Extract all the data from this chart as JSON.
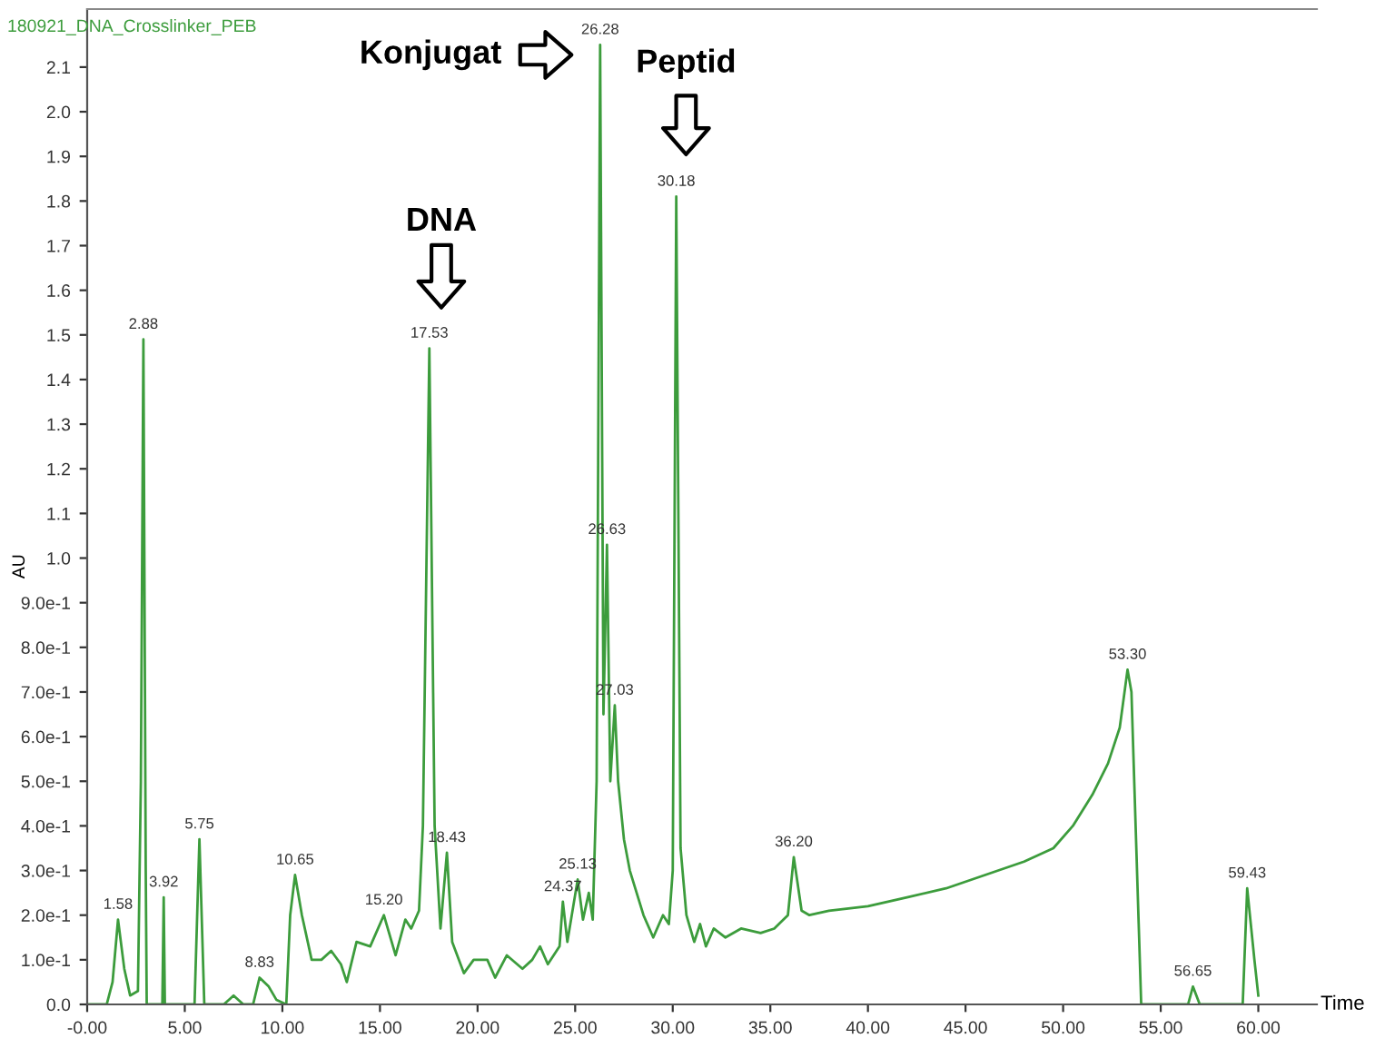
{
  "chart_data": {
    "type": "line",
    "title": "180921_DNA_Crosslinker_PEB",
    "xlabel": "Time",
    "ylabel": "AU",
    "series": [
      {
        "color": "#3c9c3c",
        "x": [
          0,
          1.0,
          1.3,
          1.58,
          1.9,
          2.2,
          2.6,
          2.75,
          2.88,
          3.0,
          3.05,
          3.85,
          3.92,
          3.98,
          5.5,
          5.75,
          6.0,
          7.0,
          7.5,
          8.0,
          8.5,
          8.83,
          9.3,
          9.7,
          10.2,
          10.4,
          10.65,
          11.0,
          11.5,
          12.0,
          12.5,
          13.0,
          13.3,
          13.8,
          14.5,
          15.2,
          15.6,
          15.8,
          16.3,
          16.6,
          17.0,
          17.2,
          17.53,
          17.8,
          18.1,
          18.43,
          18.7,
          19.3,
          19.8,
          20.5,
          20.9,
          21.5,
          22.3,
          22.8,
          23.2,
          23.6,
          24.2,
          24.37,
          24.6,
          25.13,
          25.4,
          25.7,
          25.9,
          26.1,
          26.28,
          26.45,
          26.63,
          26.8,
          27.03,
          27.2,
          27.5,
          27.8,
          28.5,
          29.0,
          29.5,
          29.8,
          30.0,
          30.18,
          30.4,
          30.7,
          31.1,
          31.4,
          31.7,
          32.1,
          32.7,
          33.5,
          34.5,
          35.2,
          35.9,
          36.2,
          36.6,
          37.0,
          38.0,
          40.0,
          42.0,
          44.0,
          46.0,
          48.0,
          49.5,
          50.5,
          51.5,
          52.3,
          52.9,
          53.3,
          53.5,
          54.0,
          56.4,
          56.65,
          57.0,
          59.2,
          59.43,
          59.8,
          60.0
        ],
        "values": [
          0,
          0,
          0.05,
          0.19,
          0.08,
          0.02,
          0.03,
          0.5,
          1.49,
          0.3,
          0,
          0,
          0.24,
          0,
          0,
          0.37,
          0,
          0,
          0.02,
          0,
          0,
          0.06,
          0.04,
          0.01,
          0,
          0.2,
          0.29,
          0.2,
          0.1,
          0.1,
          0.12,
          0.09,
          0.05,
          0.14,
          0.13,
          0.2,
          0.14,
          0.11,
          0.19,
          0.17,
          0.21,
          0.4,
          1.47,
          0.4,
          0.17,
          0.34,
          0.14,
          0.07,
          0.1,
          0.1,
          0.06,
          0.11,
          0.08,
          0.1,
          0.13,
          0.09,
          0.13,
          0.23,
          0.14,
          0.28,
          0.19,
          0.25,
          0.19,
          0.5,
          2.15,
          0.65,
          1.03,
          0.5,
          0.67,
          0.5,
          0.37,
          0.3,
          0.2,
          0.15,
          0.2,
          0.18,
          0.3,
          1.81,
          0.35,
          0.2,
          0.14,
          0.18,
          0.13,
          0.17,
          0.15,
          0.17,
          0.16,
          0.17,
          0.2,
          0.33,
          0.21,
          0.2,
          0.21,
          0.22,
          0.24,
          0.26,
          0.29,
          0.32,
          0.35,
          0.4,
          0.47,
          0.54,
          0.62,
          0.75,
          0.7,
          0,
          0,
          0.04,
          0,
          0,
          0.26,
          0.1,
          0.02
        ]
      }
    ],
    "xlim": [
      0,
      63
    ],
    "xticks": [
      {
        "value": 0,
        "label": "-0.00"
      },
      {
        "value": 5,
        "label": "5.00"
      },
      {
        "value": 10,
        "label": "10.00"
      },
      {
        "value": 15,
        "label": "15.00"
      },
      {
        "value": 20,
        "label": "20.00"
      },
      {
        "value": 25,
        "label": "25.00"
      },
      {
        "value": 30,
        "label": "30.00"
      },
      {
        "value": 35,
        "label": "35.00"
      },
      {
        "value": 40,
        "label": "40.00"
      },
      {
        "value": 45,
        "label": "45.00"
      },
      {
        "value": 50,
        "label": "50.00"
      },
      {
        "value": 55,
        "label": "55.00"
      },
      {
        "value": 60,
        "label": "60.00"
      }
    ],
    "ylim": [
      0,
      2.23
    ],
    "yticks": [
      {
        "value": 0,
        "label": "0.0"
      },
      {
        "value": 0.1,
        "label": "1.0e-1"
      },
      {
        "value": 0.2,
        "label": "2.0e-1"
      },
      {
        "value": 0.3,
        "label": "3.0e-1"
      },
      {
        "value": 0.4,
        "label": "4.0e-1"
      },
      {
        "value": 0.5,
        "label": "5.0e-1"
      },
      {
        "value": 0.6,
        "label": "6.0e-1"
      },
      {
        "value": 0.7,
        "label": "7.0e-1"
      },
      {
        "value": 0.8,
        "label": "8.0e-1"
      },
      {
        "value": 0.9,
        "label": "9.0e-1"
      },
      {
        "value": 1.0,
        "label": "1.0"
      },
      1.1,
      1.2,
      1.3,
      1.4,
      1.5,
      1.6,
      1.7,
      1.8,
      1.9,
      {
        "value": 2.0,
        "label": "2.0"
      },
      2.1
    ],
    "grid": false,
    "marker": "none",
    "line_style": "solid",
    "legend": false,
    "annotations": [
      "DNA",
      "Konjugat",
      "Peptid",
      {
        "text": "1.58",
        "x": 1.58,
        "y": 0.19
      },
      {
        "text": "2.88",
        "x": 2.88,
        "y": 1.49
      },
      {
        "text": "3.92",
        "x": 3.92,
        "y": 0.24
      },
      {
        "text": "5.75",
        "x": 5.75,
        "y": 0.37
      },
      {
        "text": "8.83",
        "x": 8.83,
        "y": 0.06
      },
      {
        "text": "10.65",
        "x": 10.65,
        "y": 0.29
      },
      {
        "text": "15.20",
        "x": 15.2,
        "y": 0.2
      },
      {
        "text": "17.53",
        "x": 17.53,
        "y": 1.47
      },
      {
        "text": "18.43",
        "x": 18.43,
        "y": 0.34
      },
      {
        "text": "24.37",
        "x": 24.37,
        "y": 0.23
      },
      {
        "text": "25.13",
        "x": 25.13,
        "y": 0.28
      },
      {
        "text": "26.28",
        "x": 26.28,
        "y": 2.15
      },
      {
        "text": "26.63",
        "x": 26.63,
        "y": 1.03
      },
      {
        "text": "27.03",
        "x": 27.03,
        "y": 0.67
      },
      {
        "text": "30.18",
        "x": 30.18,
        "y": 1.81
      },
      {
        "text": "36.20",
        "x": 36.2,
        "y": 0.33
      },
      {
        "text": "53.30",
        "x": 53.3,
        "y": 0.75
      },
      {
        "text": "56.65",
        "x": 56.65,
        "y": 0.04
      },
      {
        "text": "59.43",
        "x": 59.43,
        "y": 0.26
      }
    ]
  }
}
